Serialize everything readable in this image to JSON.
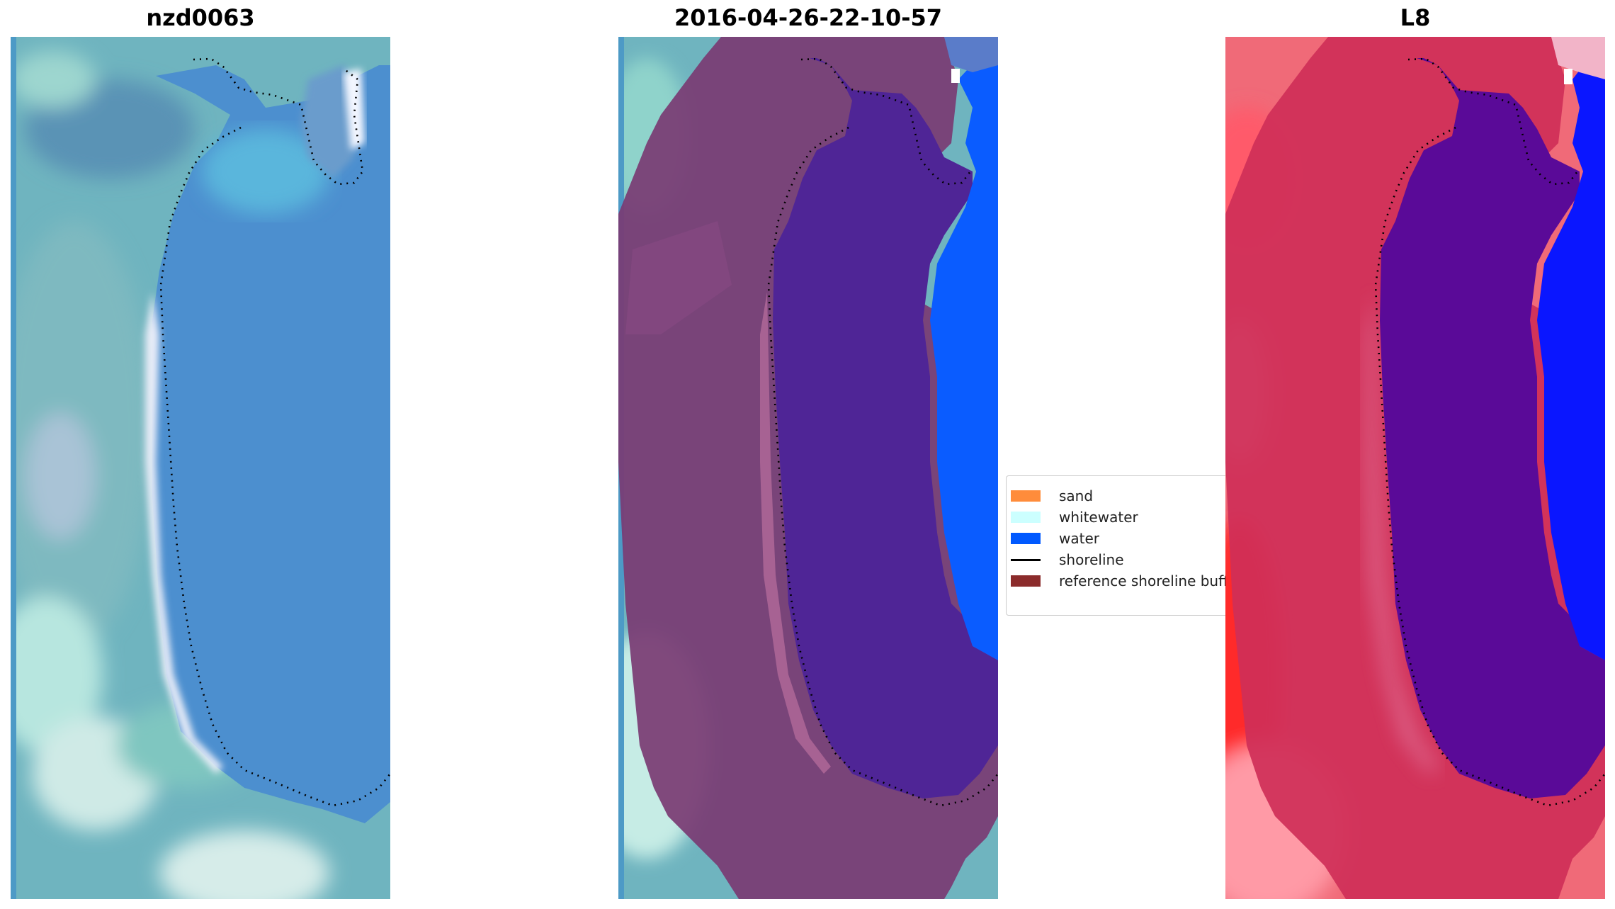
{
  "panels": [
    {
      "title": "nzd0063"
    },
    {
      "title": "2016-04-26-22-10-57"
    },
    {
      "title": "L8"
    }
  ],
  "legend": {
    "items": [
      {
        "label": "sand",
        "color": "#ff8c3b",
        "kind": "patch"
      },
      {
        "label": "whitewater",
        "color": "#ccffff",
        "kind": "patch"
      },
      {
        "label": "water",
        "color": "#0059ff",
        "kind": "patch"
      },
      {
        "label": "shoreline",
        "color": "#000000",
        "kind": "line"
      },
      {
        "label": "reference shoreline buffer",
        "color": "#8b2b2b",
        "kind": "patch"
      }
    ]
  },
  "colors": {
    "water_blue": "#4b8fd0",
    "land_teal": "#5fb6b0",
    "buffer_purple": "#7a3b73",
    "water_class": "#4f2596",
    "ocean_class": "#0a5cff",
    "l8_red": "#d22a52",
    "l8_water": "#5a0a98",
    "l8_blue": "#0a16ff"
  }
}
